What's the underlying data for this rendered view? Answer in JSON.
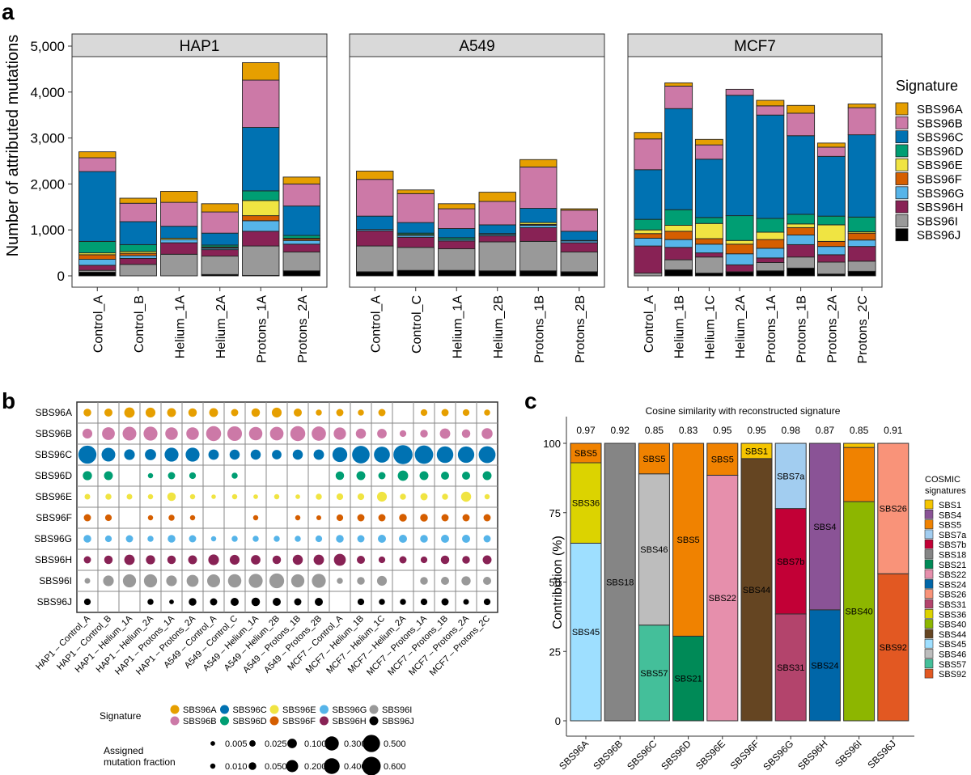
{
  "panel_labels": [
    "a",
    "b",
    "c"
  ],
  "chart_data": [
    {
      "id": "a",
      "type": "bar",
      "stacked": true,
      "ylabel": "Number of attributed mutations",
      "ylim": [
        0,
        5200
      ],
      "yticks": [
        0,
        1000,
        2000,
        3000,
        4000,
        5000
      ],
      "ytick_labels": [
        "0",
        "1,000",
        "2,000",
        "3,000",
        "4,000",
        "5,000"
      ],
      "grid": false,
      "legend_title": "Signature",
      "legend_position": "right",
      "signatures": [
        "SBS96A",
        "SBS96B",
        "SBS96C",
        "SBS96D",
        "SBS96E",
        "SBS96F",
        "SBS96G",
        "SBS96H",
        "SBS96I",
        "SBS96J"
      ],
      "colors": {
        "SBS96A": "#E69F00",
        "SBS96B": "#CC79A7",
        "SBS96C": "#0072B2",
        "SBS96D": "#009E73",
        "SBS96E": "#F0E442",
        "SBS96F": "#D55E00",
        "SBS96G": "#56B4E9",
        "SBS96H": "#882255",
        "SBS96I": "#999999",
        "SBS96J": "#000000"
      },
      "facets": [
        {
          "name": "HAP1",
          "samples": [
            "Control_A",
            "Control_B",
            "Helium_1A",
            "Helium_2A",
            "Protons_1A",
            "Protons_2A"
          ],
          "stack_order_bottom_to_top": [
            "SBS96J",
            "SBS96I",
            "SBS96H",
            "SBS96G",
            "SBS96F",
            "SBS96E",
            "SBS96D",
            "SBS96C",
            "SBS96B",
            "SBS96A"
          ],
          "values": {
            "SBS96J": [
              80,
              0,
              0,
              30,
              10,
              110
            ],
            "SBS96I": [
              40,
              250,
              470,
              400,
              640,
              410
            ],
            "SBS96H": [
              110,
              130,
              250,
              140,
              320,
              170
            ],
            "SBS96G": [
              130,
              60,
              70,
              30,
              230,
              80
            ],
            "SBS96F": [
              100,
              50,
              0,
              20,
              110,
              30
            ],
            "SBS96E": [
              40,
              40,
              30,
              10,
              330,
              20
            ],
            "SBS96D": [
              250,
              150,
              0,
              40,
              210,
              60
            ],
            "SBS96C": [
              1520,
              500,
              260,
              260,
              1380,
              640
            ],
            "SBS96B": [
              300,
              400,
              520,
              460,
              1030,
              480
            ],
            "SBS96A": [
              130,
              110,
              240,
              180,
              380,
              150
            ]
          }
        },
        {
          "name": "A549",
          "samples": [
            "Control_A",
            "Control_C",
            "Helium_1A",
            "Helium_2B",
            "Protons_1B",
            "Protons_2B"
          ],
          "stack_order_bottom_to_top": [
            "SBS96J",
            "SBS96I",
            "SBS96H",
            "SBS96G",
            "SBS96F",
            "SBS96E",
            "SBS96D",
            "SBS96C",
            "SBS96B",
            "SBS96A"
          ],
          "values": {
            "SBS96J": [
              90,
              120,
              120,
              110,
              110,
              90
            ],
            "SBS96I": [
              560,
              500,
              470,
              630,
              640,
              430
            ],
            "SBS96H": [
              330,
              220,
              170,
              130,
              300,
              200
            ],
            "SBS96G": [
              30,
              40,
              30,
              30,
              50,
              40
            ],
            "SBS96F": [
              0,
              0,
              0,
              0,
              20,
              10
            ],
            "SBS96E": [
              0,
              20,
              0,
              0,
              40,
              0
            ],
            "SBS96D": [
              0,
              30,
              40,
              20,
              0,
              0
            ],
            "SBS96C": [
              290,
              230,
              200,
              190,
              310,
              200
            ],
            "SBS96B": [
              800,
              630,
              430,
              510,
              900,
              460
            ],
            "SBS96A": [
              180,
              80,
              110,
              200,
              160,
              30
            ]
          }
        },
        {
          "name": "MCF7",
          "samples": [
            "Control_A",
            "Helium_1B",
            "Helium_1C",
            "Helium_2A",
            "Protons_1A",
            "Protons_1B",
            "Protons_2A",
            "Protons_2C"
          ],
          "stack_order_bottom_to_top": [
            "SBS96J",
            "SBS96I",
            "SBS96H",
            "SBS96G",
            "SBS96F",
            "SBS96E",
            "SBS96D",
            "SBS96C",
            "SBS96B",
            "SBS96A"
          ],
          "values": {
            "SBS96J": [
              0,
              130,
              60,
              90,
              110,
              170,
              40,
              100
            ],
            "SBS96I": [
              60,
              220,
              350,
              0,
              180,
              240,
              260,
              220
            ],
            "SBS96H": [
              590,
              270,
              90,
              150,
              100,
              270,
              160,
              320
            ],
            "SBS96G": [
              170,
              170,
              190,
              240,
              210,
              210,
              180,
              140
            ],
            "SBS96F": [
              100,
              180,
              120,
              210,
              190,
              160,
              110,
              150
            ],
            "SBS96E": [
              80,
              130,
              330,
              80,
              160,
              80,
              360,
              30
            ],
            "SBS96D": [
              230,
              340,
              130,
              540,
              300,
              210,
              190,
              320
            ],
            "SBS96C": [
              1080,
              2200,
              1270,
              2620,
              2250,
              1710,
              1300,
              1790
            ],
            "SBS96B": [
              670,
              490,
              310,
              130,
              200,
              490,
              200,
              590
            ],
            "SBS96A": [
              140,
              70,
              120,
              0,
              120,
              170,
              90,
              80
            ]
          }
        }
      ]
    },
    {
      "id": "b",
      "type": "bubble-grid",
      "rows": [
        "SBS96A",
        "SBS96B",
        "SBS96C",
        "SBS96D",
        "SBS96E",
        "SBS96F",
        "SBS96G",
        "SBS96H",
        "SBS96I",
        "SBS96J"
      ],
      "columns": [
        "HAP1 – Control_A",
        "HAP1 – Control_B",
        "HAP1 – Helium_1A",
        "HAP1 – Helium_2A",
        "HAP1 – Protons_1A",
        "HAP1 – Protons_2A",
        "A549 – Control_A",
        "A549 – Control_C",
        "A549 – Helium_1A",
        "A549 – Helium_2B",
        "A549 – Protons_1B",
        "A549 – Protons_2B",
        "MCF7 – Control_A",
        "MCF7 – Helium_1B",
        "MCF7 – Helium_1C",
        "MCF7 – Helium_2A",
        "MCF7 – Protons_1A",
        "MCF7 – Protons_1B",
        "MCF7 – Protons_2A",
        "MCF7 – Protons_2C"
      ],
      "values": [
        [
          0.05,
          0.06,
          0.13,
          0.11,
          0.08,
          0.07,
          0.08,
          0.04,
          0.07,
          0.11,
          0.06,
          0.02,
          0.04,
          0.02,
          0.04,
          0,
          0.03,
          0.04,
          0.03,
          0.02
        ],
        [
          0.11,
          0.23,
          0.28,
          0.29,
          0.22,
          0.22,
          0.35,
          0.33,
          0.26,
          0.27,
          0.35,
          0.31,
          0.21,
          0.12,
          0.1,
          0.03,
          0.05,
          0.13,
          0.07,
          0.15
        ],
        [
          0.56,
          0.28,
          0.14,
          0.16,
          0.29,
          0.29,
          0.13,
          0.12,
          0.12,
          0.1,
          0.12,
          0.13,
          0.34,
          0.52,
          0.41,
          0.64,
          0.58,
          0.45,
          0.44,
          0.47
        ],
        [
          0.09,
          0.08,
          0,
          0.01,
          0.04,
          0.03,
          0,
          0.02,
          0,
          0,
          0,
          0,
          0.07,
          0.08,
          0.04,
          0.13,
          0.08,
          0.06,
          0.06,
          0.08
        ],
        [
          0.015,
          0.02,
          0.015,
          0.01,
          0.07,
          0.01,
          0.004,
          0.01,
          0.005,
          0.01,
          0.005,
          0.02,
          0.03,
          0.03,
          0.11,
          0.02,
          0.04,
          0.02,
          0.12,
          0.01
        ],
        [
          0.04,
          0.03,
          0,
          0.01,
          0.02,
          0.01,
          0,
          0,
          0.01,
          0,
          0.01,
          0.007,
          0.03,
          0.04,
          0.04,
          0.05,
          0.05,
          0.04,
          0.04,
          0.04
        ],
        [
          0.05,
          0.03,
          0.04,
          0.02,
          0.05,
          0.04,
          0.01,
          0.02,
          0.02,
          0.02,
          0.02,
          0.03,
          0.05,
          0.04,
          0.06,
          0.06,
          0.05,
          0.06,
          0.06,
          0.04
        ],
        [
          0.04,
          0.07,
          0.13,
          0.09,
          0.07,
          0.08,
          0.14,
          0.11,
          0.1,
          0.07,
          0.12,
          0.13,
          0.19,
          0.06,
          0.03,
          0.04,
          0.03,
          0.07,
          0.05,
          0.08
        ],
        [
          0.015,
          0.14,
          0.25,
          0.25,
          0.14,
          0.19,
          0.24,
          0.26,
          0.29,
          0.34,
          0.25,
          0.29,
          0.02,
          0.05,
          0.11,
          0,
          0.05,
          0.06,
          0.09,
          0.06
        ],
        [
          0.03,
          0,
          0,
          0.02,
          0.005,
          0.05,
          0.04,
          0.06,
          0.07,
          0.06,
          0.04,
          0.06,
          0,
          0.03,
          0.02,
          0.02,
          0.03,
          0.04,
          0.015,
          0.03
        ]
      ],
      "legend_signature_title": "Signature",
      "legend_signature_items": [
        "SBS96A",
        "SBS96B",
        "SBS96C",
        "SBS96D",
        "SBS96E",
        "SBS96F",
        "SBS96G",
        "SBS96H",
        "SBS96I",
        "SBS96J"
      ],
      "legend_size_title_lines": [
        "Assigned",
        "mutation fraction"
      ],
      "legend_size_values": [
        0.005,
        0.01,
        0.025,
        0.05,
        0.1,
        0.2,
        0.3,
        0.4,
        0.5,
        0.6
      ],
      "legend_size_labels": [
        "0.005",
        "0.010",
        "0.025",
        "0.050",
        "0.100",
        "0.200",
        "0.300",
        "0.400",
        "0.500",
        "0.600"
      ]
    },
    {
      "id": "c",
      "type": "bar",
      "stacked": true,
      "title": "Cosine similarity with reconstructed signature",
      "ylabel": "Contribution (%)",
      "xlabel": "",
      "ylim": [
        0,
        100
      ],
      "yticks": [
        0,
        25,
        50,
        75,
        100
      ],
      "ytick_labels": [
        "0",
        "25",
        "50",
        "75",
        "100"
      ],
      "categories": [
        "SBS96A",
        "SBS96B",
        "SBS96C",
        "SBS96D",
        "SBS96E",
        "SBS96F",
        "SBS96G",
        "SBS96H",
        "SBS96I",
        "SBS96J"
      ],
      "cosine_similarity": [
        "0.97",
        "0.92",
        "0.85",
        "0.83",
        "0.95",
        "0.95",
        "0.98",
        "0.87",
        "0.85",
        "0.91"
      ],
      "stacks": [
        [
          {
            "sig": "SBS45",
            "value": 64,
            "label": "SBS45"
          },
          {
            "sig": "SBS36",
            "value": 29,
            "label": "SBS36"
          },
          {
            "sig": "SBS5",
            "value": 7,
            "label": "SBS5"
          }
        ],
        [
          {
            "sig": "SBS18",
            "value": 100,
            "label": "SBS18"
          }
        ],
        [
          {
            "sig": "SBS57",
            "value": 34.5,
            "label": "SBS57"
          },
          {
            "sig": "SBS46",
            "value": 54.5,
            "label": "SBS46"
          },
          {
            "sig": "SBS5",
            "value": 11,
            "label": "SBS5"
          }
        ],
        [
          {
            "sig": "SBS21",
            "value": 30.5,
            "label": "SBS21"
          },
          {
            "sig": "SBS5",
            "value": 69.5,
            "label": "SBS5"
          }
        ],
        [
          {
            "sig": "SBS22",
            "value": 88.5,
            "label": "SBS22"
          },
          {
            "sig": "SBS5",
            "value": 11.5,
            "label": "SBS5"
          }
        ],
        [
          {
            "sig": "SBS44",
            "value": 94.5,
            "label": "SBS44"
          },
          {
            "sig": "SBS1",
            "value": 5.5,
            "label": "SBS1"
          }
        ],
        [
          {
            "sig": "SBS31",
            "value": 38.5,
            "label": "SBS31"
          },
          {
            "sig": "SBS7b",
            "value": 38,
            "label": "SBS7b"
          },
          {
            "sig": "SBS7a",
            "value": 23.5,
            "label": "SBS7a"
          }
        ],
        [
          {
            "sig": "SBS24",
            "value": 40,
            "label": "SBS24"
          },
          {
            "sig": "SBS4",
            "value": 60,
            "label": "SBS4"
          }
        ],
        [
          {
            "sig": "SBS40",
            "value": 79,
            "label": "SBS40"
          },
          {
            "sig": "SBS5",
            "value": 19.5,
            "label": ""
          },
          {
            "sig": "SBS1",
            "value": 1.5,
            "label": ""
          }
        ],
        [
          {
            "sig": "SBS92",
            "value": 53,
            "label": "SBS92"
          },
          {
            "sig": "SBS26",
            "value": 47,
            "label": "SBS26"
          }
        ]
      ],
      "legend_title_lines": [
        "COSMIC",
        "signatures"
      ],
      "legend_position": "right",
      "legend_items": [
        "SBS1",
        "SBS4",
        "SBS5",
        "SBS7a",
        "SBS7b",
        "SBS18",
        "SBS21",
        "SBS22",
        "SBS24",
        "SBS26",
        "SBS31",
        "SBS36",
        "SBS40",
        "SBS44",
        "SBS45",
        "SBS46",
        "SBS57",
        "SBS92"
      ],
      "colors": {
        "SBS1": "#F5C500",
        "SBS4": "#8A5396",
        "SBS5": "#F08200",
        "SBS7a": "#A2CDF0",
        "SBS7b": "#C20036",
        "SBS18": "#858585",
        "SBS21": "#008A57",
        "SBS22": "#E68FAC",
        "SBS24": "#0066A8",
        "SBS26": "#F99379",
        "SBS31": "#B3446C",
        "SBS36": "#DCD300",
        "SBS40": "#8DB600",
        "SBS44": "#654522",
        "SBS45": "#9EDFFF",
        "SBS46": "#BDBDBD",
        "SBS57": "#44BF9A",
        "SBS92": "#E25822"
      }
    }
  ]
}
